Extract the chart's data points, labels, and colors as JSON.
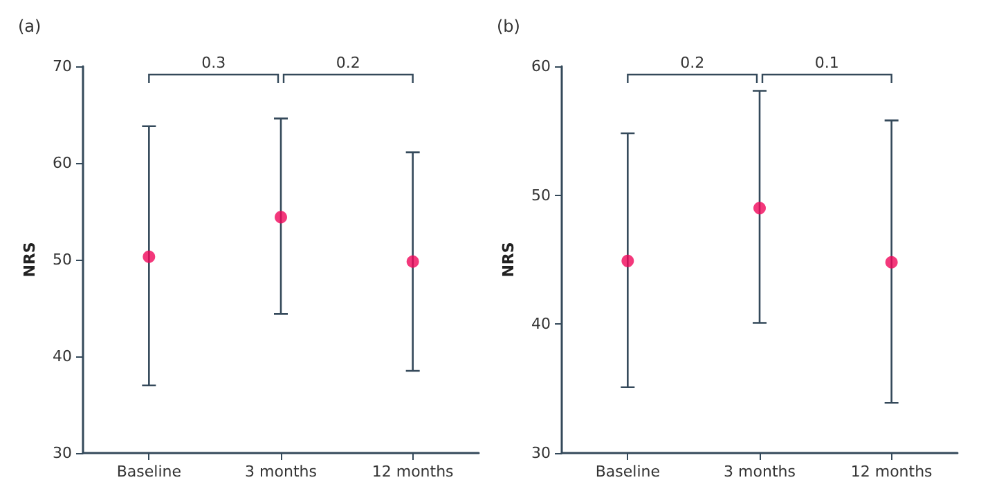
{
  "chart_data": [
    {
      "type": "scatter",
      "title": "(a)",
      "ylabel": "NRS",
      "categories": [
        "Baseline",
        "3 months",
        "12 months"
      ],
      "series": [
        {
          "color": "#f0065a",
          "values": [
            50.3,
            54.4,
            49.8
          ],
          "errors": [
            [
              37.0,
              63.8
            ],
            [
              44.4,
              64.6
            ],
            [
              38.5,
              61.1
            ]
          ]
        }
      ],
      "ylim": [
        30,
        70
      ],
      "yticks": [
        30,
        40,
        50,
        60,
        70
      ],
      "grid": false,
      "marker": "circle",
      "annotations": [
        "0.3",
        "0.2"
      ]
    },
    {
      "type": "scatter",
      "title": "(b)",
      "ylabel": "NRS",
      "categories": [
        "Baseline",
        "3 months",
        "12 months"
      ],
      "series": [
        {
          "color": "#f0065a",
          "values": [
            44.9,
            49.0,
            44.8
          ],
          "errors": [
            [
              35.1,
              54.8
            ],
            [
              40.1,
              58.1
            ],
            [
              33.9,
              55.8
            ]
          ]
        }
      ],
      "ylim": [
        30,
        60
      ],
      "yticks": [
        30,
        40,
        50,
        60
      ],
      "grid": false,
      "marker": "circle",
      "annotations": [
        "0.2",
        "0.1"
      ]
    }
  ]
}
